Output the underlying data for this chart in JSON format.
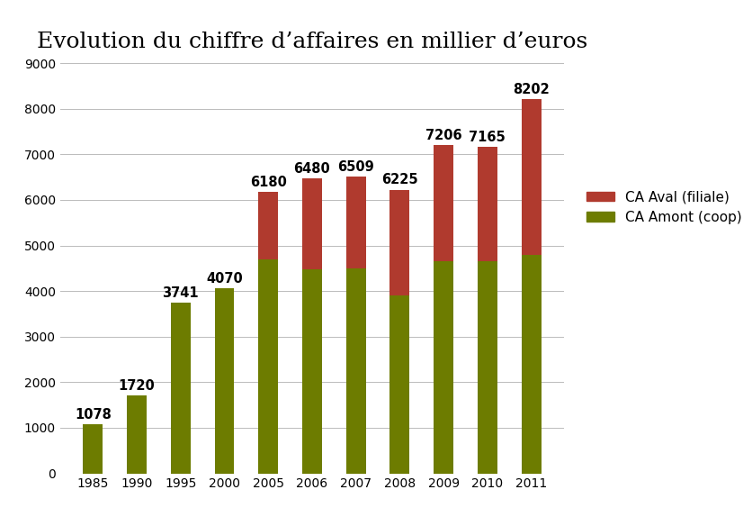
{
  "title": "Evolution du chiffre d’affaires en millier d’euros",
  "categories": [
    "1985",
    "1990",
    "1995",
    "2000",
    "2005",
    "2006",
    "2007",
    "2008",
    "2009",
    "2010",
    "2011"
  ],
  "totals": [
    1078,
    1720,
    3741,
    4070,
    6180,
    6480,
    6509,
    6225,
    7206,
    7165,
    8202
  ],
  "amont": [
    1078,
    1720,
    3741,
    4070,
    4700,
    4480,
    4500,
    3900,
    4650,
    4650,
    4800
  ],
  "aval": [
    0,
    0,
    0,
    0,
    1480,
    2000,
    2009,
    2325,
    2556,
    2515,
    3402
  ],
  "color_aval": "#b03a2e",
  "color_amont": "#6d7c00",
  "bar_width": 0.45,
  "ylim": [
    0,
    9000
  ],
  "yticks": [
    0,
    1000,
    2000,
    3000,
    4000,
    5000,
    6000,
    7000,
    8000,
    9000
  ],
  "legend_aval": "CA Aval (filiale)",
  "legend_amont": "CA Amont (coop)",
  "title_fontsize": 18,
  "label_fontsize": 10.5,
  "tick_fontsize": 10,
  "legend_fontsize": 11,
  "background_color": "#ffffff",
  "grid_color": "#bbbbbb"
}
